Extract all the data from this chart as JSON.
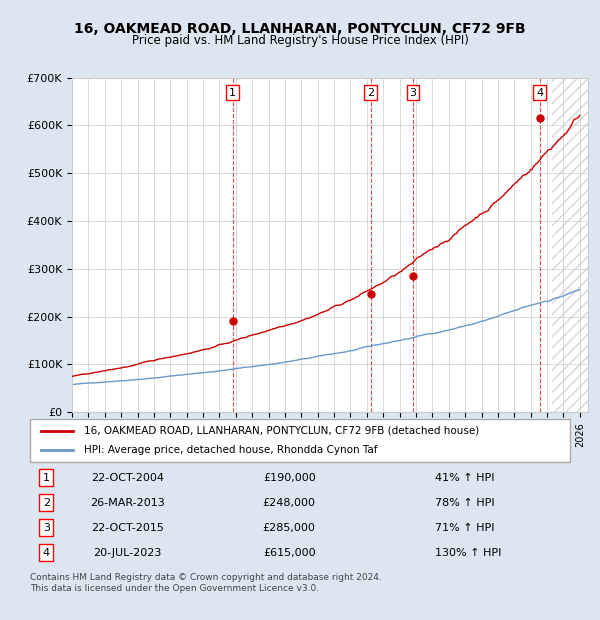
{
  "title": "16, OAKMEAD ROAD, LLANHARAN, PONTYCLUN, CF72 9FB",
  "subtitle": "Price paid vs. HM Land Registry's House Price Index (HPI)",
  "property_label": "16, OAKMEAD ROAD, LLANHARAN, PONTYCLUN, CF72 9FB (detached house)",
  "hpi_label": "HPI: Average price, detached house, Rhondda Cynon Taf",
  "transactions": [
    {
      "num": 1,
      "date": "22-OCT-2004",
      "price": 190000,
      "pct": "41%",
      "dir": "↑",
      "x_year": 2004.81
    },
    {
      "num": 2,
      "date": "26-MAR-2013",
      "price": 248000,
      "pct": "78%",
      "dir": "↑",
      "x_year": 2013.23
    },
    {
      "num": 3,
      "date": "22-OCT-2015",
      "price": 285000,
      "pct": "71%",
      "dir": "↑",
      "x_year": 2015.81
    },
    {
      "num": 4,
      "date": "20-JUL-2023",
      "price": 615000,
      "pct": "130%",
      "dir": "↑",
      "x_year": 2023.55
    }
  ],
  "property_color": "#cc0000",
  "hpi_color": "#6699cc",
  "background_color": "#dce6f0",
  "plot_bg_color": "#ffffff",
  "ylim": [
    0,
    700000
  ],
  "xlim_start": 1995.0,
  "xlim_end": 2026.5,
  "footer": "Contains HM Land Registry data © Crown copyright and database right 2024.\nThis data is licensed under the Open Government Licence v3.0."
}
